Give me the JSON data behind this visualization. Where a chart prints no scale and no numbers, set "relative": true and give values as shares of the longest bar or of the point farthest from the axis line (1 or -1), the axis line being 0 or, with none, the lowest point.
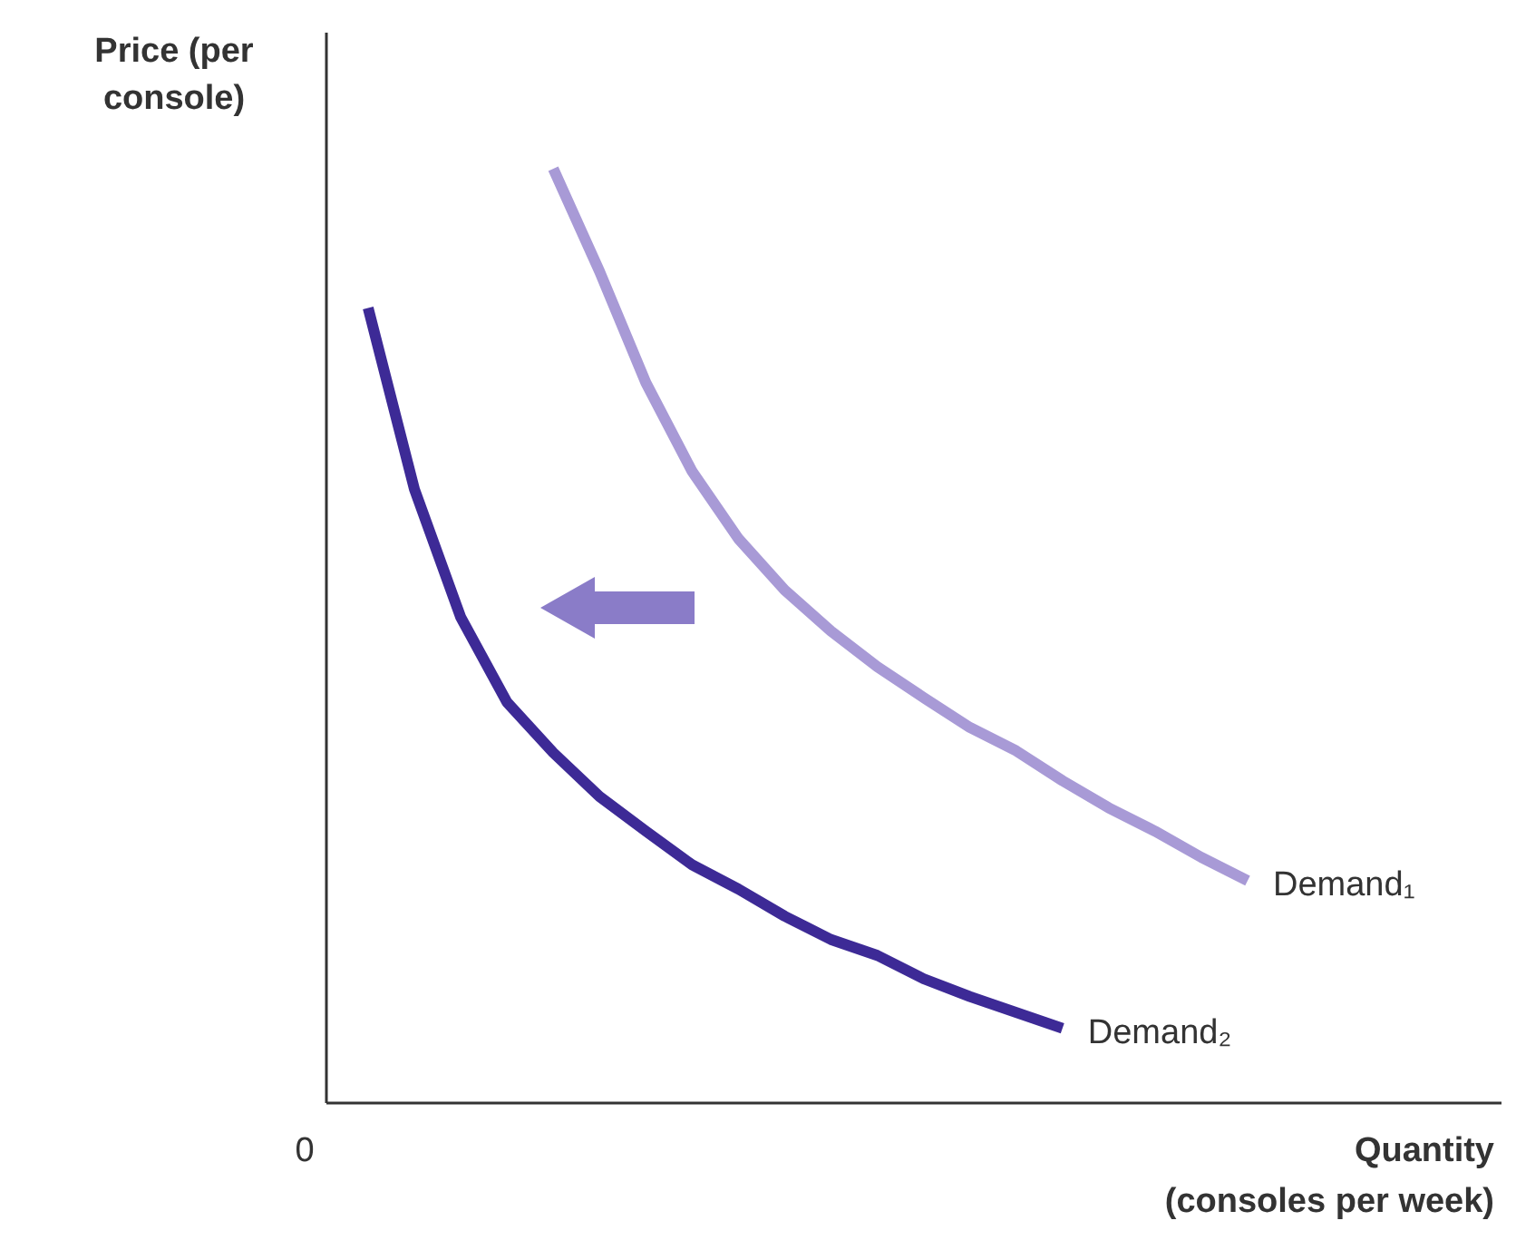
{
  "chart_data": {
    "type": "line",
    "relative": true,
    "xlabel": "Quantity\n(consoles per week)",
    "ylabel": "Price (per\nconsole)",
    "annotations": [
      "0"
    ],
    "marker": "none",
    "line_style": "solid",
    "categories": [
      null,
      null,
      null,
      null,
      null,
      null,
      null,
      null,
      null,
      null,
      null,
      null,
      null,
      null,
      null,
      null,
      null,
      null,
      null,
      null
    ],
    "series": [
      {
        "name": "Demand₁",
        "color": "#a89ad6",
        "values": [
          null,
          null,
          null,
          null,
          1,
          0.89,
          0.771,
          0.676,
          0.604,
          0.549,
          0.505,
          0.467,
          0.434,
          0.402,
          0.377,
          0.345,
          0.316,
          0.291,
          0.263,
          0.238
        ]
      },
      {
        "name": "Demand₂",
        "color": "#3d2a96",
        "values": [
          0.851,
          0.657,
          0.52,
          0.429,
          0.375,
          0.328,
          0.291,
          0.255,
          0.229,
          0.2,
          0.175,
          0.158,
          0.133,
          0.114,
          0.097,
          0.08,
          null,
          null,
          null,
          null
        ]
      }
    ]
  }
}
